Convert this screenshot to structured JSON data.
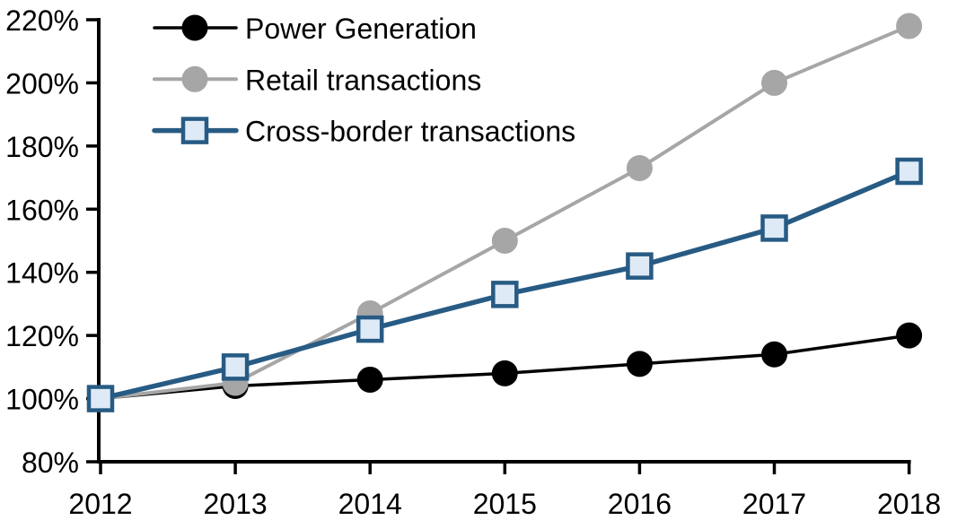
{
  "chart_data": {
    "type": "line",
    "x": [
      2012,
      2013,
      2014,
      2015,
      2016,
      2017,
      2018
    ],
    "xticks": [
      "2012",
      "2013",
      "2014",
      "2015",
      "2016",
      "2017",
      "2018"
    ],
    "yticks": [
      "80%",
      "100%",
      "120%",
      "140%",
      "160%",
      "180%",
      "200%",
      "220%"
    ],
    "ylim": [
      80,
      220
    ],
    "ytick_step": 20,
    "ytick_format": "percent",
    "grid": false,
    "legend_position": "top-left",
    "background_color": "#ffffff",
    "axis_color": "#000000",
    "series": [
      {
        "name": "Power Generation",
        "slug": "power-generation",
        "marker": "circle",
        "color": "#000000",
        "marker_fill": "#000000",
        "line_width": 3.5,
        "values": [
          100,
          104,
          106,
          108,
          111,
          114,
          120
        ]
      },
      {
        "name": "Retail transactions",
        "slug": "retail-transactions",
        "marker": "circle",
        "color": "#a6a6a6",
        "marker_fill": "#a6a6a6",
        "line_width": 4,
        "values": [
          100,
          105,
          127,
          150,
          173,
          200,
          218
        ]
      },
      {
        "name": "Cross-border transactions",
        "slug": "cross-border-transactions",
        "marker": "square",
        "color": "#275b84",
        "marker_fill": "#deeaf6",
        "line_width": 5.5,
        "values": [
          100,
          110,
          122,
          133,
          142,
          154,
          172
        ]
      }
    ]
  }
}
